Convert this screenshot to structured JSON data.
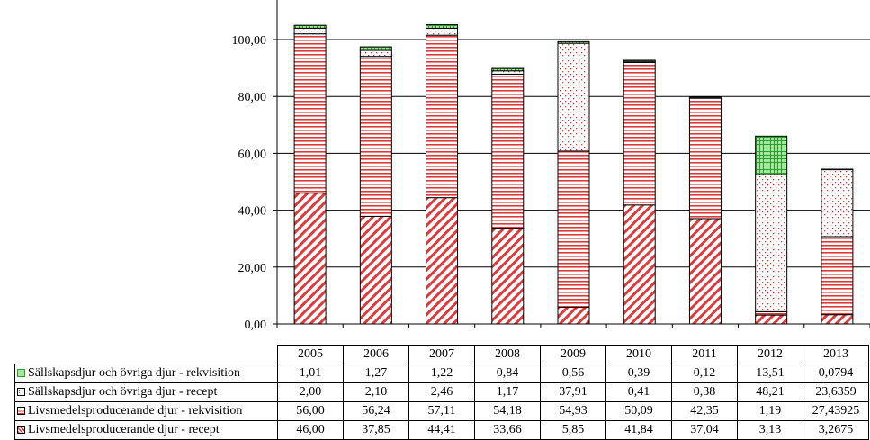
{
  "chart_data": {
    "type": "bar",
    "stacked": true,
    "categories": [
      "2005",
      "2006",
      "2007",
      "2008",
      "2009",
      "2010",
      "2011",
      "2012",
      "2013"
    ],
    "ylim": [
      0,
      110
    ],
    "yticks": [
      "0,00",
      "20,00",
      "40,00",
      "60,00",
      "80,00",
      "100,00"
    ],
    "grid": true,
    "series": [
      {
        "name": "Livsmedelsproducerande djur - recept",
        "pattern": "diagonal",
        "values": [
          46.0,
          37.85,
          44.41,
          33.66,
          5.85,
          41.84,
          37.04,
          3.13,
          3.2675
        ],
        "labels": [
          "46,00",
          "37,85",
          "44,41",
          "33,66",
          "5,85",
          "41,84",
          "37,04",
          "3,13",
          "3,2675"
        ]
      },
      {
        "name": "Livsmedelsproducerande djur - rekvisition",
        "pattern": "horizontal",
        "values": [
          56.0,
          56.24,
          57.11,
          54.18,
          54.93,
          50.09,
          42.35,
          1.19,
          27.43925
        ],
        "labels": [
          "56,00",
          "56,24",
          "57,11",
          "54,18",
          "54,93",
          "50,09",
          "42,35",
          "1,19",
          "27,43925"
        ]
      },
      {
        "name": "Sällskapsdjur och övriga djur - recept",
        "pattern": "dots",
        "values": [
          2.0,
          2.1,
          2.46,
          1.17,
          37.91,
          0.41,
          0.38,
          48.21,
          23.6359
        ],
        "labels": [
          "2,00",
          "2,10",
          "2,46",
          "1,17",
          "37,91",
          "0,41",
          "0,38",
          "48,21",
          "23,6359"
        ]
      },
      {
        "name": "Sällskapsdjur och övriga djur - rekvisition",
        "pattern": "grid",
        "values": [
          1.01,
          1.27,
          1.22,
          0.84,
          0.56,
          0.39,
          0.12,
          13.51,
          0.0794
        ],
        "labels": [
          "1,01",
          "1,27",
          "1,22",
          "0,84",
          "0,56",
          "0,39",
          "0,12",
          "13,51",
          "0,0794"
        ]
      }
    ],
    "table_row_order": [
      3,
      2,
      1,
      0
    ],
    "colors": {
      "diagonal": "#e0393b",
      "horizontal": "#e0393b",
      "dots": "#e0393b",
      "grid": "#2ca02c",
      "grid_fill": "#a6e3a1"
    }
  }
}
